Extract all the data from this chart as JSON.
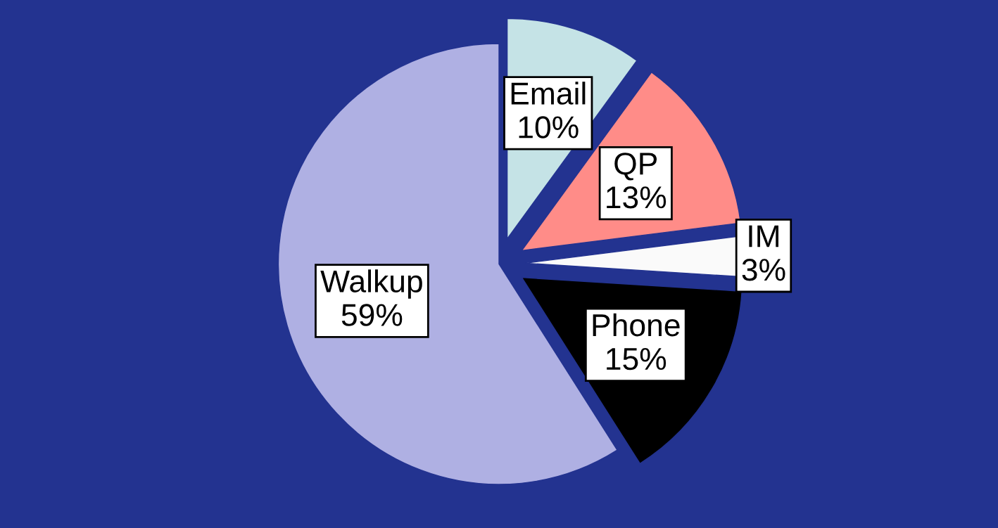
{
  "chart_data": {
    "type": "pie",
    "categories": [
      "Email",
      "QP",
      "IM",
      "Phone",
      "Walkup"
    ],
    "values": [
      10,
      13,
      3,
      15,
      59
    ],
    "value_labels": [
      "10%",
      "13%",
      "3%",
      "15%",
      "59%"
    ],
    "colors": [
      "#c5e3e6",
      "#ff8c88",
      "#fafafa",
      "#000000",
      "#afb0e3"
    ]
  }
}
